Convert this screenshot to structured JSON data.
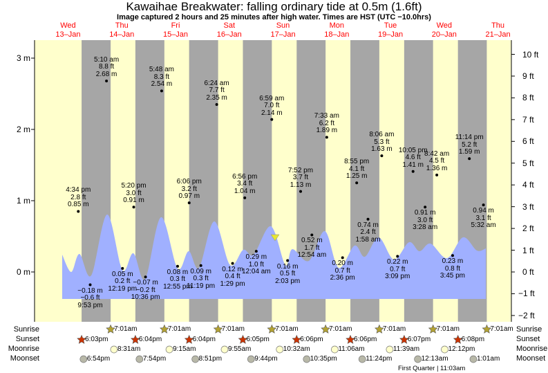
{
  "header": {
    "title": "Kawaihae Breakwater: falling  ordinary tide at 0.5m (1.6ft)",
    "subtitle": "Image captured 2 hours and 25 minutes after high water. Times are HST (UTC −10.0hrs)"
  },
  "days": [
    {
      "dow": "Wed",
      "date": "13–Jan"
    },
    {
      "dow": "Thu",
      "date": "14–Jan"
    },
    {
      "dow": "Fri",
      "date": "15–Jan"
    },
    {
      "dow": "Sat",
      "date": "16–Jan"
    },
    {
      "dow": "Sun",
      "date": "17–Jan"
    },
    {
      "dow": "Mon",
      "date": "18–Jan"
    },
    {
      "dow": "Tue",
      "date": "19–Jan"
    },
    {
      "dow": "Wed",
      "date": "20–Jan"
    },
    {
      "dow": "Thu",
      "date": "21–Jan"
    }
  ],
  "colors": {
    "day": "#ffffcc",
    "night": "#a6a6a6",
    "water": "#a0b0ff",
    "sunrise": "#b3a233",
    "sunset": "#cc3300",
    "moonrise": "#ffffcc",
    "moonset": "#b8b8a8",
    "daylabel": "#ff0000"
  },
  "chart_data": {
    "type": "area",
    "title": "Kawaihae Breakwater tide",
    "ylabel_left": "m",
    "ylabel_right": "ft",
    "y_left_ticks": [
      "3 m",
      "2 m",
      "1 m",
      "0 m"
    ],
    "y_right_ticks": [
      "10 ft",
      "9 ft",
      "8 ft",
      "7 ft",
      "6 ft",
      "5 ft",
      "4 ft",
      "3 ft",
      "2 ft",
      "1 ft",
      "0 ft",
      "−1 ft",
      "−2 ft"
    ],
    "current": {
      "height_m": 0.5,
      "state": "falling"
    },
    "highs": [
      {
        "day": 0,
        "time": "4:34 pm",
        "ft": "2.8 ft",
        "m": "0.85 m"
      },
      {
        "day": 1,
        "time": "5:10 am",
        "ft": "8.8 ft",
        "m": "2.68 m"
      },
      {
        "day": 1,
        "time": "5:20 pm",
        "ft": "3.0 ft",
        "m": "0.91 m"
      },
      {
        "day": 2,
        "time": "5:48 am",
        "ft": "8.3 ft",
        "m": "2.54 m"
      },
      {
        "day": 2,
        "time": "6:06 pm",
        "ft": "3.2 ft",
        "m": "0.97 m"
      },
      {
        "day": 3,
        "time": "6:24 am",
        "ft": "7.7 ft",
        "m": "2.35 m"
      },
      {
        "day": 3,
        "time": "6:56 pm",
        "ft": "3.4 ft",
        "m": "1.04 m"
      },
      {
        "day": 4,
        "time": "6:59 am",
        "ft": "7.0 ft",
        "m": "2.14 m"
      },
      {
        "day": 4,
        "time": "7:52 pm",
        "ft": "3.7 ft",
        "m": "1.13 m"
      },
      {
        "day": 5,
        "time": "7:33 am",
        "ft": "6.2 ft",
        "m": "1.89 m"
      },
      {
        "day": 5,
        "time": "8:55 pm",
        "ft": "4.1 ft",
        "m": "1.25 m"
      },
      {
        "day": 6,
        "time": "8:06 am",
        "ft": "5.3 ft",
        "m": "1.63 m"
      },
      {
        "day": 6,
        "time": "10:05 pm",
        "ft": "4.6 ft",
        "m": "1.41 m"
      },
      {
        "day": 7,
        "time": "8:42 am",
        "ft": "4.5 ft",
        "m": "1.36 m"
      },
      {
        "day": 7,
        "time": "11:14 pm",
        "ft": "5.2 ft",
        "m": "1.59 m"
      }
    ],
    "lows": [
      {
        "day": 0,
        "time": "9:53 pm",
        "ft": "−0.6 ft",
        "m": "−0.18 m"
      },
      {
        "day": 1,
        "time": "12:19 pm",
        "ft": "0.2 ft",
        "m": "0.05 m"
      },
      {
        "day": 1,
        "time": "10:36 pm",
        "ft": "−0.2 ft",
        "m": "−0.07 m"
      },
      {
        "day": 2,
        "time": "12:55 pm",
        "ft": "0.3 ft",
        "m": "0.08 m"
      },
      {
        "day": 2,
        "time": "11:19 pm",
        "ft": "0.3 ft",
        "m": "0.09 m"
      },
      {
        "day": 3,
        "time": "1:29 pm",
        "ft": "0.4 ft",
        "m": "0.12 m"
      },
      {
        "day": 4,
        "time": "12:04 am",
        "ft": "1.0 ft",
        "m": "0.29 m"
      },
      {
        "day": 4,
        "time": "2:03 pm",
        "ft": "0.5 ft",
        "m": "0.16 m"
      },
      {
        "day": 5,
        "time": "12:54 am",
        "ft": "1.7 ft",
        "m": "0.52 m"
      },
      {
        "day": 5,
        "time": "2:36 pm",
        "ft": "0.7 ft",
        "m": "0.20 m"
      },
      {
        "day": 6,
        "time": "1:58 am",
        "ft": "2.4 ft",
        "m": "0.74 m"
      },
      {
        "day": 6,
        "time": "3:09 pm",
        "ft": "0.7 ft",
        "m": "0.22 m"
      },
      {
        "day": 7,
        "time": "3:28 am",
        "ft": "3.0 ft",
        "m": "0.91 m"
      },
      {
        "day": 7,
        "time": "3:45 pm",
        "ft": "0.8 ft",
        "m": "0.23 m"
      },
      {
        "day": 8,
        "time": "5:32 am",
        "ft": "3.1 ft",
        "m": "0.94 m"
      }
    ]
  },
  "rows": {
    "labels": {
      "sunrise": "Sunrise",
      "sunset": "Sunset",
      "moonrise": "Moonrise",
      "moonset": "Moonset"
    },
    "sunrise": [
      {
        "day": 1,
        "time": "7:01am"
      },
      {
        "day": 2,
        "time": "7:01am"
      },
      {
        "day": 3,
        "time": "7:01am"
      },
      {
        "day": 4,
        "time": "7:01am"
      },
      {
        "day": 5,
        "time": "7:01am"
      },
      {
        "day": 6,
        "time": "7:01am"
      },
      {
        "day": 7,
        "time": "7:01am"
      },
      {
        "day": 8,
        "time": "7:01am"
      }
    ],
    "sunset": [
      {
        "day": 0,
        "time": "6:03pm"
      },
      {
        "day": 1,
        "time": "6:04pm"
      },
      {
        "day": 2,
        "time": "6:04pm"
      },
      {
        "day": 3,
        "time": "6:05pm"
      },
      {
        "day": 4,
        "time": "6:06pm"
      },
      {
        "day": 5,
        "time": "6:06pm"
      },
      {
        "day": 6,
        "time": "6:07pm"
      },
      {
        "day": 7,
        "time": "6:08pm"
      }
    ],
    "moonrise": [
      {
        "day": 1,
        "time": "8:31am"
      },
      {
        "day": 2,
        "time": "9:15am"
      },
      {
        "day": 3,
        "time": "9:55am"
      },
      {
        "day": 4,
        "time": "10:32am"
      },
      {
        "day": 5,
        "time": "11:06am"
      },
      {
        "day": 6,
        "time": "11:39am"
      },
      {
        "day": 7,
        "time": "12:12pm"
      }
    ],
    "moonset": [
      {
        "day": 0,
        "time": "6:54pm"
      },
      {
        "day": 1,
        "time": "7:54pm"
      },
      {
        "day": 2,
        "time": "8:51pm"
      },
      {
        "day": 3,
        "time": "9:44pm"
      },
      {
        "day": 4,
        "time": "10:35pm"
      },
      {
        "day": 5,
        "time": "11:24pm"
      },
      {
        "day": 7,
        "time": "12:13am"
      },
      {
        "day": 8,
        "time": "1:01am"
      }
    ],
    "moon_phase": "First Quarter | 11:03am"
  }
}
